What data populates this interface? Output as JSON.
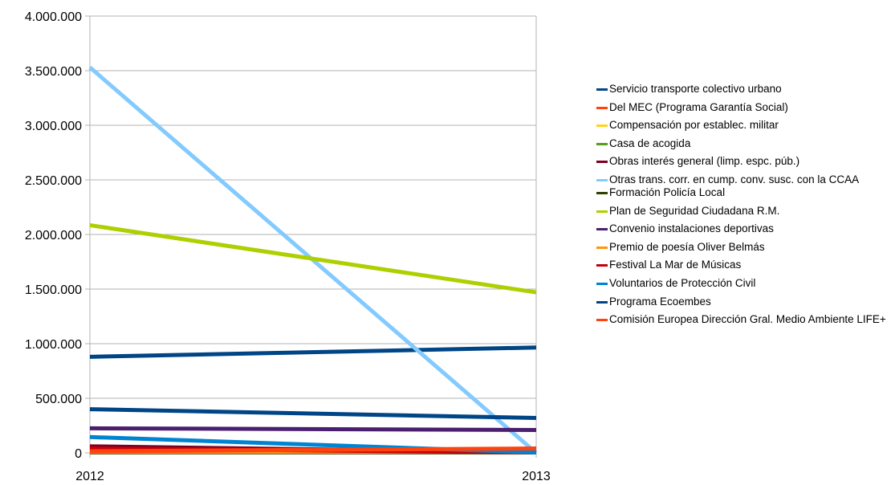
{
  "chart_data": {
    "type": "line",
    "categories": [
      "2012",
      "2013"
    ],
    "y_ticks": [
      "0",
      "500.000",
      "1.000.000",
      "1.500.000",
      "2.000.000",
      "2.500.000",
      "3.000.000",
      "3.500.000",
      "4.000.000"
    ],
    "ylim": [
      0,
      4000000
    ],
    "grid": true,
    "legend_position": "right",
    "series": [
      {
        "name": "Servicio transporte colectivo urbano",
        "color": "#004586",
        "values": [
          880000,
          965000
        ]
      },
      {
        "name": "Del MEC (Programa Garantía Social)",
        "color": "#ff420e",
        "values": [
          20000,
          20000
        ]
      },
      {
        "name": "Compensación por establec. militar",
        "color": "#ffd320",
        "values": [
          10000,
          10000
        ]
      },
      {
        "name": "Casa de acogida",
        "color": "#579d1c",
        "values": [
          30000,
          30000
        ]
      },
      {
        "name": "Obras interés general (limp. espc. púb.)",
        "color": "#7e0021",
        "values": [
          60000,
          5000
        ]
      },
      {
        "name": "Otras trans. corr. en cump. conv. susc. con la CCAA",
        "color": "#83caff",
        "values": [
          3530000,
          0
        ]
      },
      {
        "name": "Formación Policía Local",
        "color": "#314004",
        "values": [
          5000,
          5000
        ]
      },
      {
        "name": "Plan de Seguridad Ciudadana R.M.",
        "color": "#aecf00",
        "values": [
          2085000,
          1470000
        ]
      },
      {
        "name": "Convenio instalaciones deportivas",
        "color": "#4b1f6f",
        "values": [
          225000,
          210000
        ]
      },
      {
        "name": "Premio de poesía Oliver Belmás",
        "color": "#ff950e",
        "values": [
          10000,
          10000
        ]
      },
      {
        "name": "Festival La Mar de Músicas",
        "color": "#c5000b",
        "values": [
          40000,
          5000
        ]
      },
      {
        "name": "Voluntarios de Protección Civil",
        "color": "#0084d1",
        "values": [
          145000,
          5000
        ]
      },
      {
        "name": "Programa Ecoembes",
        "color": "#004586",
        "values": [
          400000,
          320000
        ]
      },
      {
        "name": "Comisión Europea Dirección Gral. Medio Ambiente LIFE+",
        "color": "#ff420e",
        "values": [
          15000,
          40000
        ]
      }
    ]
  }
}
